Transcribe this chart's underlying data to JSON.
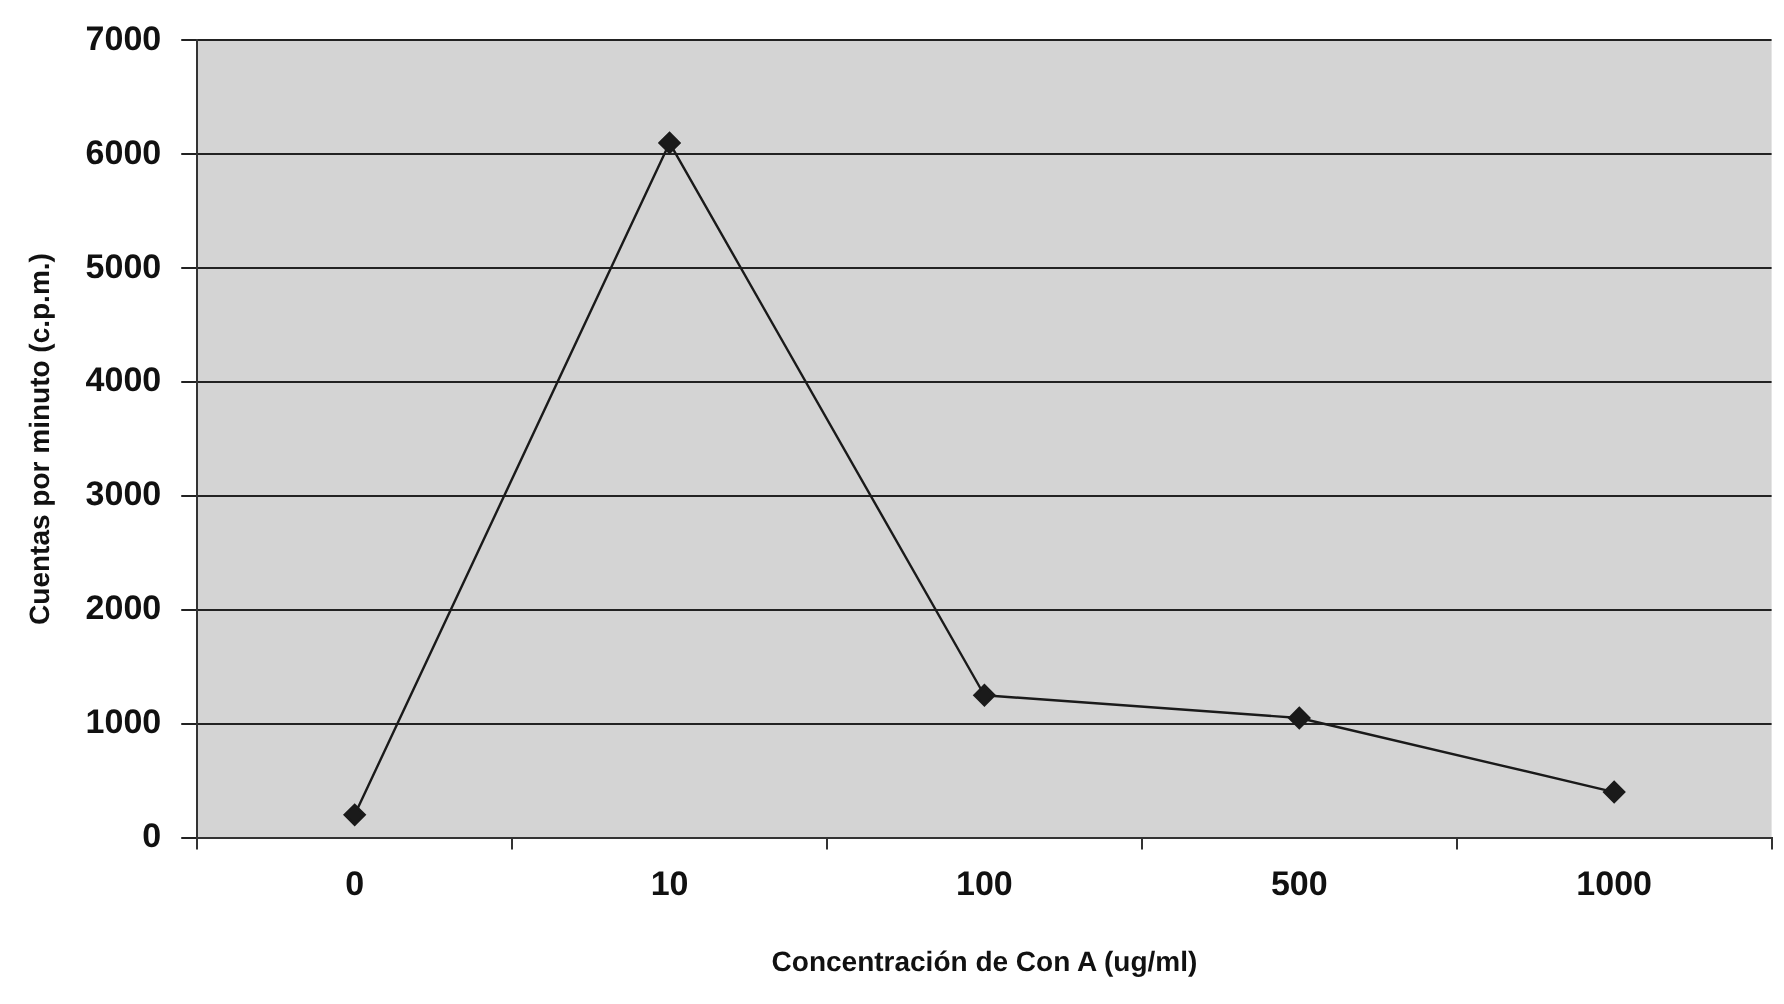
{
  "chart_data": {
    "type": "line",
    "xlabel": "Concentración de Con A (ug/ml)",
    "ylabel": "Cuentas por minuto (c.p.m.)",
    "categories": [
      "0",
      "10",
      "100",
      "500",
      "1000"
    ],
    "series": [
      {
        "color": "#1a1a1a",
        "values": [
          200,
          6100,
          1250,
          1050,
          400
        ]
      }
    ],
    "ylim": [
      0,
      7000
    ],
    "yticks": [
      0,
      1000,
      2000,
      3000,
      4000,
      5000,
      6000,
      7000
    ],
    "grid": "y",
    "legend": false,
    "marker": "diamond",
    "line_style": "solid"
  }
}
